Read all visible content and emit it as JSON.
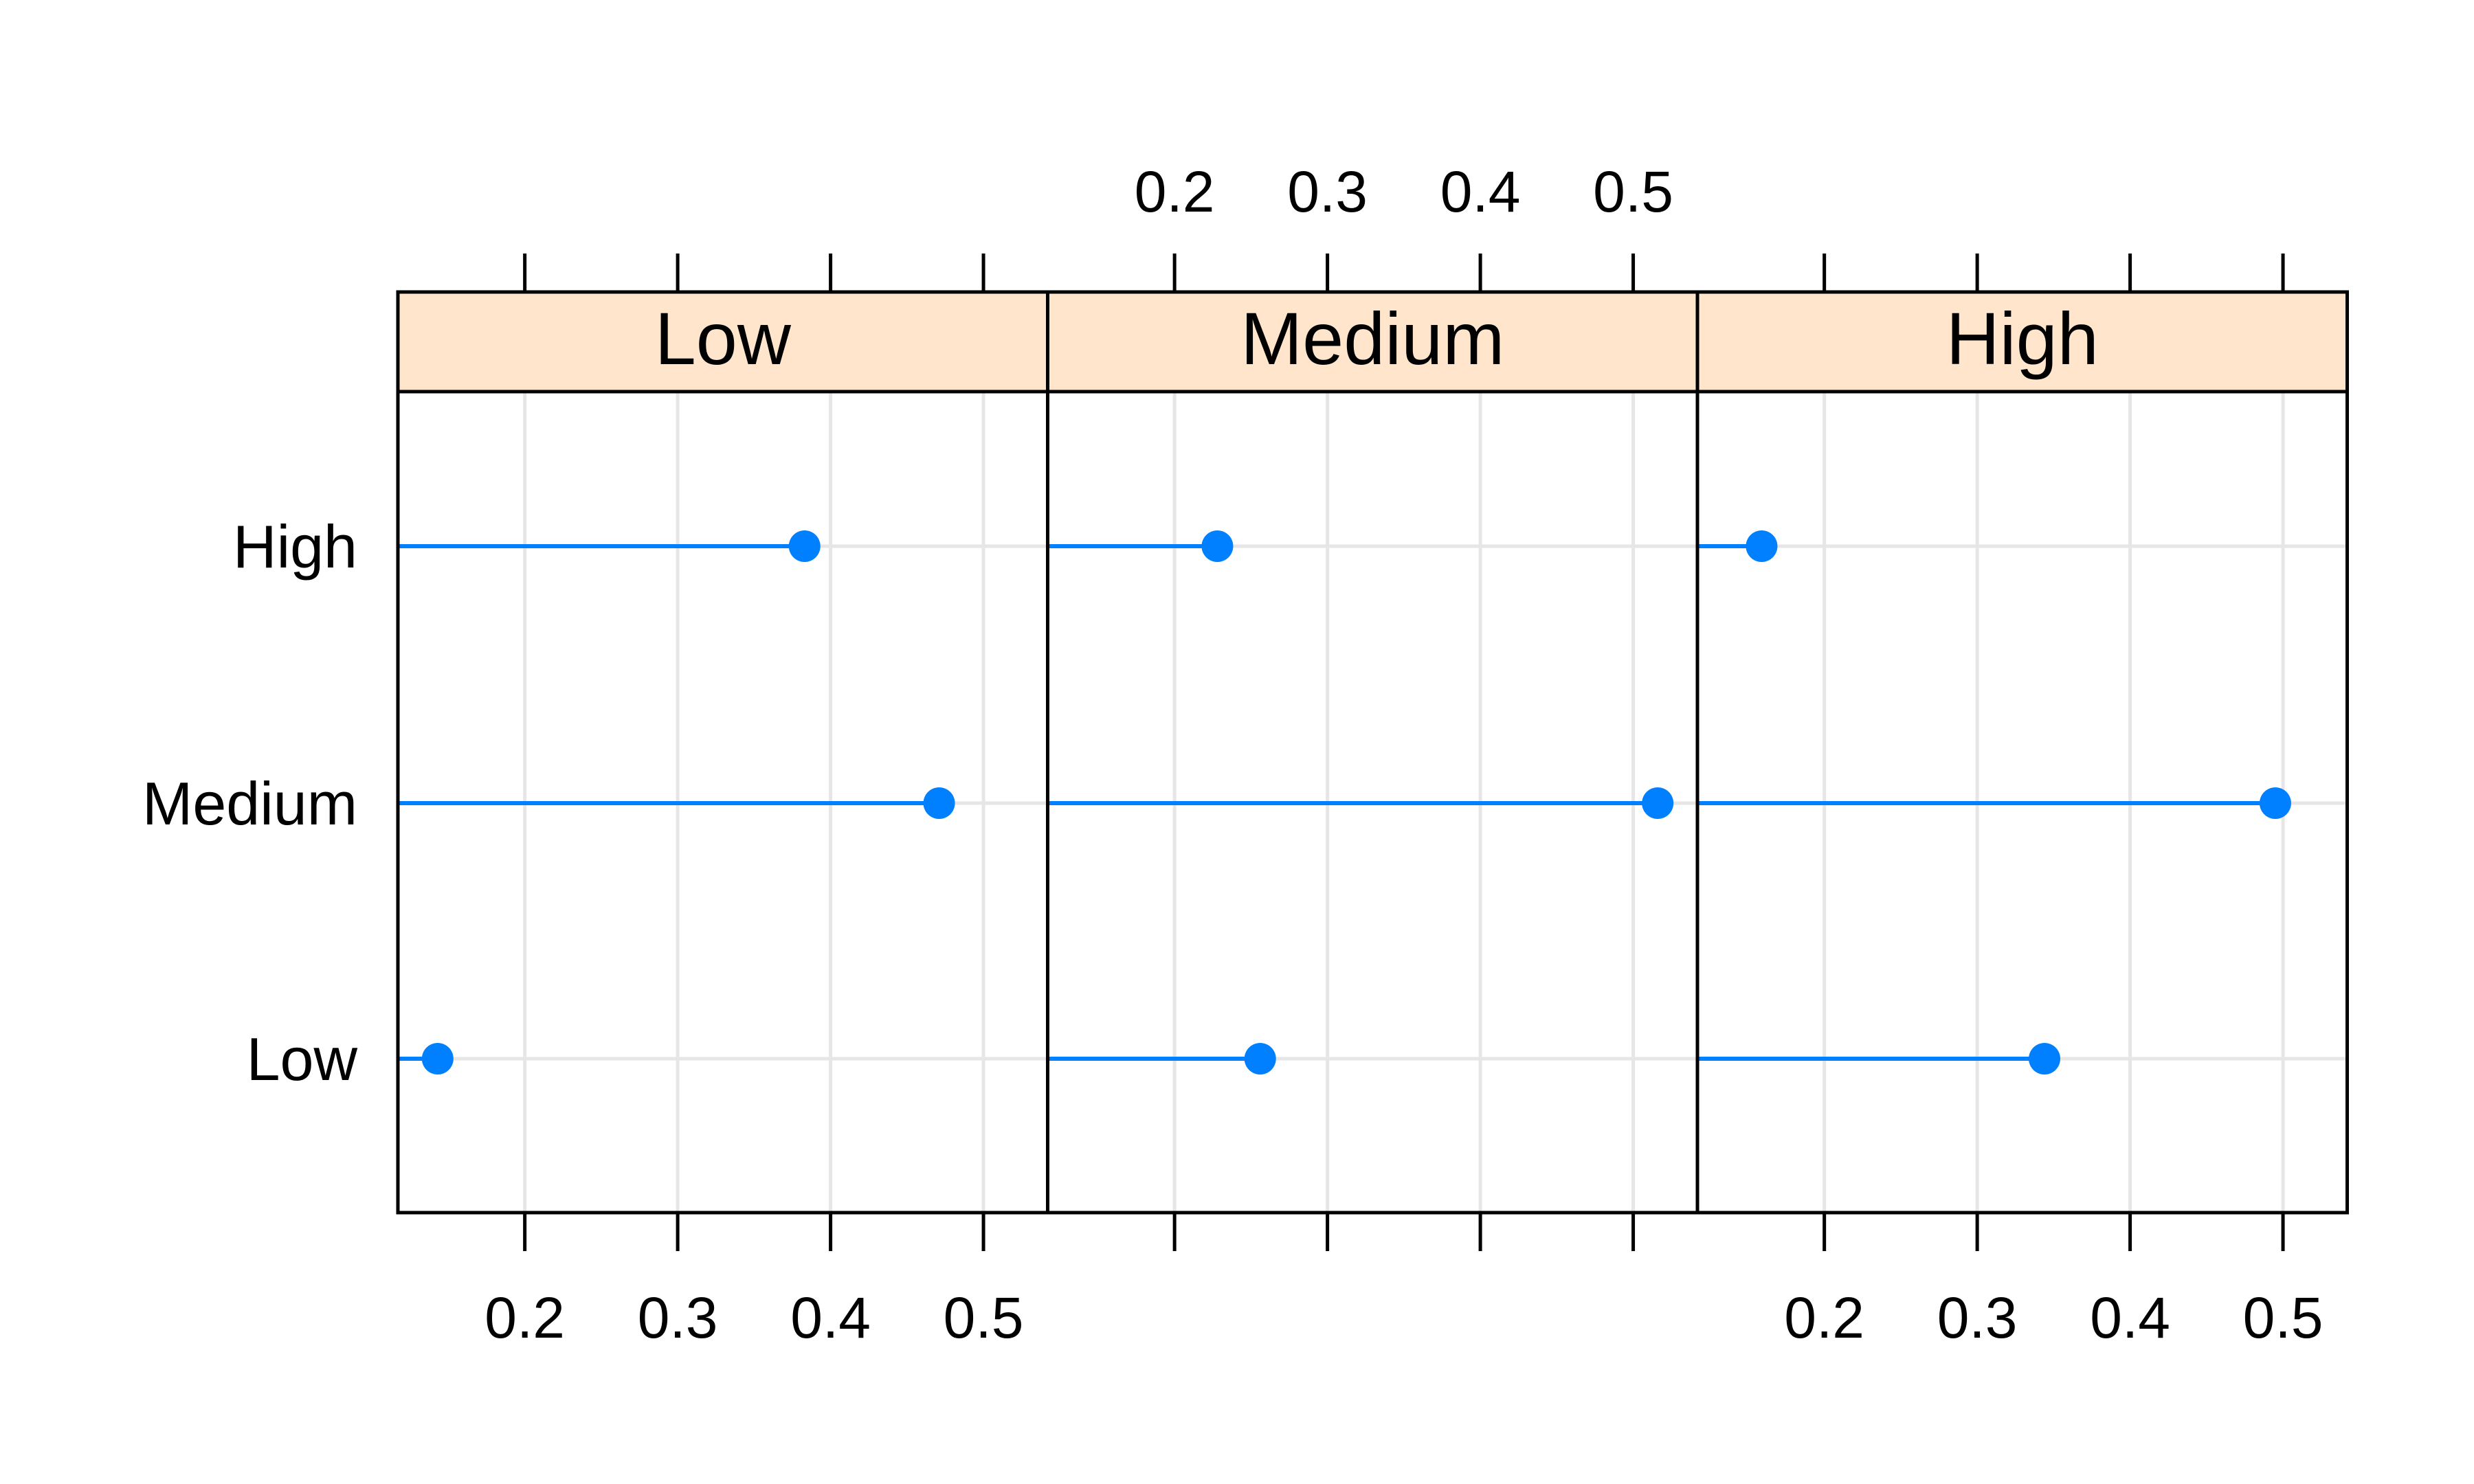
{
  "chart_data": {
    "type": "dotplot",
    "panels": [
      "Low",
      "Medium",
      "High"
    ],
    "categories": [
      "Low",
      "Medium",
      "High"
    ],
    "x_ticks": [
      0.2,
      0.3,
      0.4,
      0.5
    ],
    "x_tick_labels": [
      "0.2",
      "0.3",
      "0.4",
      "0.5"
    ],
    "xlim": [
      0.117,
      0.542
    ],
    "values": {
      "Low": {
        "Low": 0.143,
        "Medium": 0.471,
        "High": 0.383
      },
      "Medium": {
        "Low": 0.256,
        "Medium": 0.516,
        "High": 0.228
      },
      "High": {
        "Low": 0.344,
        "Medium": 0.495,
        "High": 0.159
      }
    },
    "grid": true,
    "colors": {
      "point": "#0080ff",
      "strip": "#ffe5cc",
      "grid": "#e6e6e6",
      "frame": "#000000"
    }
  }
}
